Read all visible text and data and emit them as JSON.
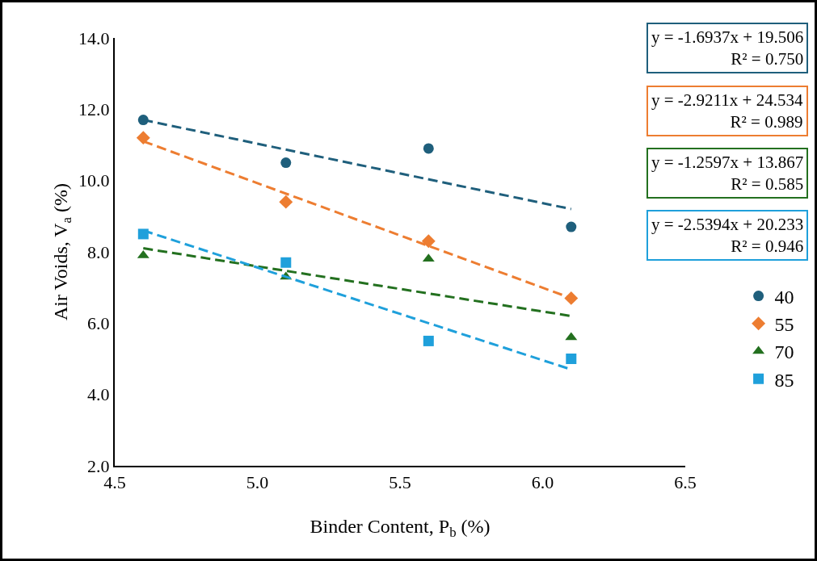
{
  "chart_data": {
    "type": "scatter",
    "xlabel": "Binder Content, P$_{b}$ (%)",
    "ylabel": "Air Voids, V$_{a}$ (%)",
    "xlim": [
      4.5,
      6.5
    ],
    "xticks": [
      4.5,
      {
        "value": 5,
        "label": "5.0"
      },
      5.5,
      {
        "value": 6,
        "label": "6.0"
      },
      6.5
    ],
    "ylim": [
      2,
      14
    ],
    "yticks": [
      {
        "value": 2,
        "label": "2.0"
      },
      {
        "value": 4,
        "label": "4.0"
      },
      {
        "value": 6,
        "label": "6.0"
      },
      {
        "value": 8,
        "label": "8.0"
      },
      {
        "value": 10,
        "label": "10.0"
      },
      {
        "value": 12,
        "label": "12.0"
      },
      {
        "value": 14,
        "label": "14.0"
      }
    ],
    "grid": false,
    "legend": "right",
    "series": [
      {
        "name": "40",
        "marker": "circle",
        "color": "#1f5f7c",
        "x": [
          4.6,
          5.1,
          5.6,
          6.1
        ],
        "values": [
          11.7,
          10.5,
          10.9,
          8.7
        ]
      },
      {
        "name": "55",
        "marker": "diamond",
        "color": "#ed7d31",
        "x": [
          4.6,
          5.1,
          5.6,
          6.1
        ],
        "values": [
          11.2,
          9.4,
          8.3,
          6.7
        ]
      },
      {
        "name": "70",
        "marker": "triangle",
        "color": "#23701f",
        "x": [
          4.6,
          5.1,
          5.6,
          6.1
        ],
        "values": [
          7.9,
          7.3,
          7.8,
          5.6
        ]
      },
      {
        "name": "85",
        "marker": "square",
        "color": "#1fa0db",
        "x": [
          4.6,
          5.1,
          5.6,
          6.1
        ],
        "values": [
          8.5,
          7.7,
          5.5,
          5.0
        ]
      },
      {
        "type": "line",
        "line_style": "dashed",
        "color": "#1f5f7c",
        "x": [
          4.6,
          6.1
        ],
        "values": [
          11.7,
          9.2
        ]
      },
      {
        "type": "line",
        "line_style": "dashed",
        "color": "#ed7d31",
        "x": [
          4.6,
          6.1
        ],
        "values": [
          11.1,
          6.7
        ]
      },
      {
        "type": "line",
        "line_style": "dashed",
        "color": "#23701f",
        "x": [
          4.6,
          6.1
        ],
        "values": [
          8.1,
          6.2
        ]
      },
      {
        "type": "line",
        "line_style": "dashed",
        "color": "#1fa0db",
        "x": [
          4.6,
          6.1
        ],
        "values": [
          8.6,
          4.7
        ]
      }
    ],
    "annotations": [
      "y = -1.6937x + 19.506\nR² = 0.750",
      "y = -2.9211x + 24.534\nR² = 0.989",
      "y = -1.2597x + 13.867\nR² = 0.585",
      "y = -2.5394x + 20.233\nR² = 0.946"
    ]
  }
}
